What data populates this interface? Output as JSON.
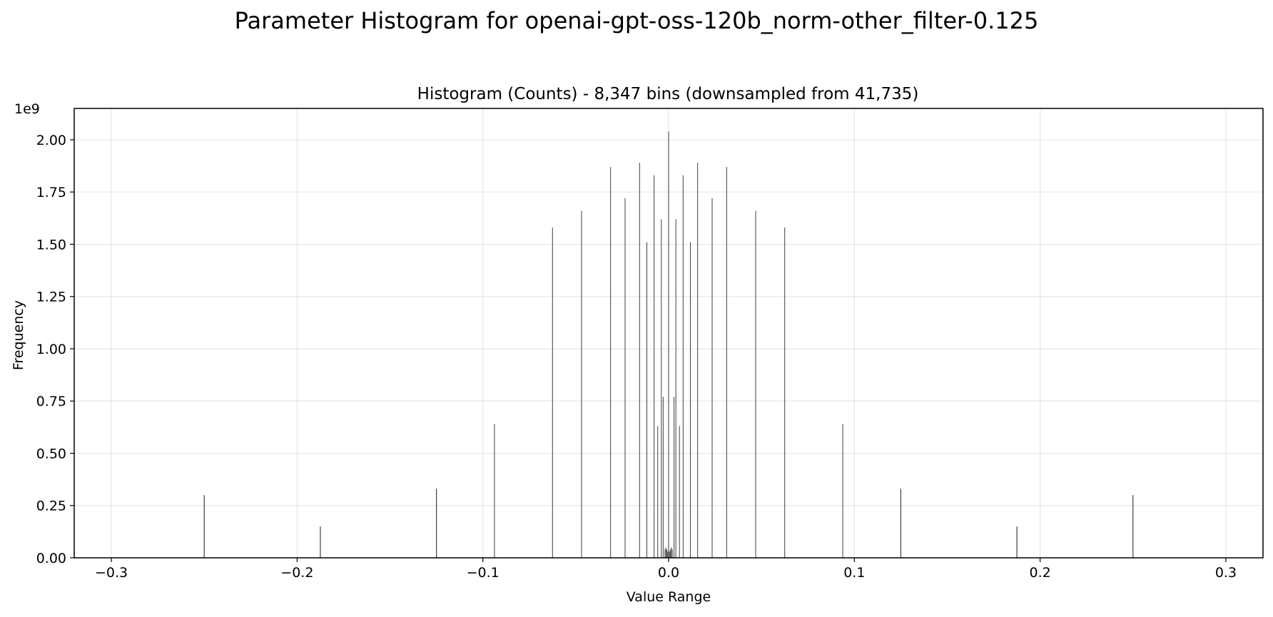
{
  "chart_data": {
    "type": "bar",
    "suptitle": "Parameter Histogram for openai-gpt-oss-120b_norm-other_filter-0.125",
    "title": "Histogram (Counts) - 8,347 bins (downsampled from 41,735)",
    "xlabel": "Value Range",
    "ylabel": "Frequency",
    "y_offset_label": "1e9",
    "xlim": [
      -0.32,
      0.32
    ],
    "ylim": [
      0,
      2.15
    ],
    "y_scale": 1000000000,
    "grid": true,
    "legend": "none",
    "x_ticks": [
      -0.3,
      -0.2,
      -0.1,
      0.0,
      0.1,
      0.2,
      0.3
    ],
    "x_tick_labels": [
      "−0.3",
      "−0.2",
      "−0.1",
      "0.0",
      "0.1",
      "0.2",
      "0.3"
    ],
    "y_ticks": [
      0,
      0.25,
      0.5,
      0.75,
      1.0,
      1.25,
      1.5,
      1.75,
      2.0
    ],
    "y_tick_labels": [
      "0.00",
      "0.25",
      "0.50",
      "0.75",
      "1.00",
      "1.25",
      "1.50",
      "1.75",
      "2.00"
    ],
    "series": [
      {
        "x": [
          -0.25,
          -0.1875,
          -0.125,
          -0.09375,
          -0.0625,
          -0.046875,
          -0.03125,
          -0.0234375,
          -0.015625,
          -0.01171875,
          -0.0078125,
          -0.005859375,
          -0.00390625,
          -0.0029296875,
          -0.001953125,
          -0.00146484375,
          -0.0009765625,
          -0.00048828125,
          0.0,
          0.00048828125,
          0.0009765625,
          0.00146484375,
          0.001953125,
          0.0029296875,
          0.00390625,
          0.005859375,
          0.0078125,
          0.01171875,
          0.015625,
          0.0234375,
          0.03125,
          0.046875,
          0.0625,
          0.09375,
          0.125,
          0.1875,
          0.25
        ],
        "values": [
          0.3,
          0.15,
          0.33,
          0.64,
          1.58,
          1.66,
          1.87,
          1.72,
          1.89,
          1.51,
          1.83,
          0.63,
          1.62,
          0.77,
          0.04,
          0.05,
          0.04,
          0.03,
          2.04,
          0.03,
          0.04,
          0.05,
          0.04,
          0.77,
          1.62,
          0.63,
          1.83,
          1.51,
          1.89,
          1.72,
          1.87,
          1.66,
          1.58,
          0.64,
          0.33,
          0.15,
          0.3
        ]
      }
    ],
    "bar_color": "#000000"
  }
}
